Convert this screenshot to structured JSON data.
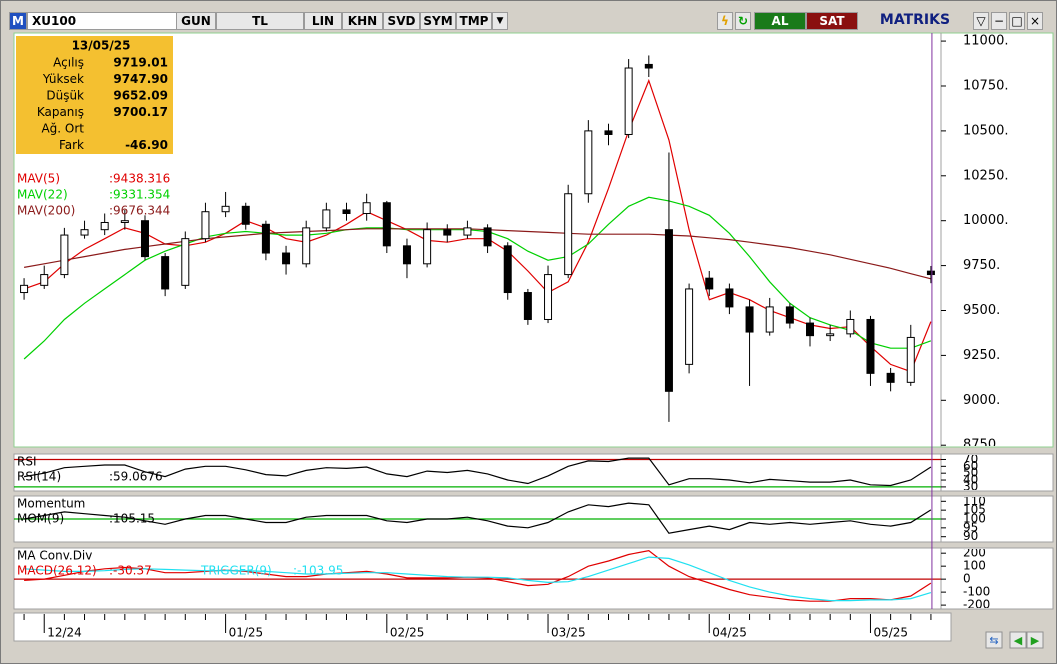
{
  "toolbar": {
    "logo": "M",
    "symbol": "XU100",
    "buttons": [
      "GUN",
      "TL",
      "LIN",
      "KHN",
      "SVD",
      "SYM",
      "TMP"
    ],
    "buy": "AL",
    "sell": "SAT",
    "brand": "MATRIKS"
  },
  "info": {
    "date": "13/05/25",
    "rows": [
      {
        "label": "Açılış",
        "value": "9719.01"
      },
      {
        "label": "Yüksek",
        "value": "9747.90"
      },
      {
        "label": "Düşük",
        "value": "9652.09"
      },
      {
        "label": "Kapanış",
        "value": "9700.17"
      },
      {
        "label": "Ağ. Ort"
      },
      {
        "label": "Fark",
        "value": "-46.90"
      }
    ]
  },
  "chart_data": [
    {
      "type": "candlestick",
      "categories": [
        null,
        "12/24",
        null,
        null,
        null,
        null,
        null,
        null,
        null,
        null,
        "01/25",
        null,
        null,
        null,
        null,
        null,
        null,
        null,
        "02/25",
        null,
        null,
        null,
        null,
        null,
        null,
        null,
        "03/25",
        null,
        null,
        null,
        null,
        null,
        null,
        null,
        "04/25",
        null,
        null,
        null,
        null,
        null,
        null,
        null,
        "05/25",
        null,
        null,
        null
      ],
      "open": [
        9600,
        9640,
        9700,
        9920,
        9950,
        9990,
        10000,
        9800,
        9640,
        9900,
        10050,
        10080,
        9980,
        9820,
        9760,
        9960,
        10060,
        10040,
        10100,
        9860,
        9760,
        9950,
        9920,
        9960,
        9860,
        9600,
        9450,
        9700,
        10150,
        10500,
        10480,
        10870,
        9950,
        9200,
        9680,
        9620,
        9520,
        9380,
        9520,
        9430,
        9360,
        9370,
        9450,
        9150,
        9100,
        9719.01
      ],
      "high": [
        9680,
        9750,
        9960,
        10000,
        10040,
        10060,
        10030,
        9820,
        9940,
        10100,
        10160,
        10100,
        10000,
        9860,
        10000,
        10100,
        10100,
        10150,
        10110,
        9900,
        9990,
        9980,
        10000,
        9980,
        9880,
        9620,
        9750,
        10200,
        10560,
        10540,
        10900,
        10920,
        10380,
        9650,
        9720,
        9650,
        9560,
        9570,
        9540,
        9460,
        9420,
        9500,
        9470,
        9180,
        9420,
        9747.9
      ],
      "low": [
        9560,
        9620,
        9680,
        9900,
        9920,
        9950,
        9780,
        9580,
        9620,
        9880,
        10020,
        9950,
        9780,
        9700,
        9740,
        9940,
        10000,
        10000,
        9820,
        9680,
        9740,
        9880,
        9900,
        9820,
        9560,
        9420,
        9430,
        9680,
        10100,
        10420,
        10460,
        10800,
        8880,
        9150,
        9580,
        9480,
        9080,
        9360,
        9400,
        9300,
        9330,
        9350,
        9080,
        9050,
        9080,
        9652.09
      ],
      "close": [
        9640,
        9700,
        9920,
        9950,
        9990,
        10000,
        9800,
        9620,
        9900,
        10050,
        10080,
        9980,
        9820,
        9760,
        9960,
        10060,
        10040,
        10100,
        9860,
        9760,
        9950,
        9920,
        9960,
        9860,
        9600,
        9450,
        9700,
        10150,
        10500,
        10480,
        10850,
        10850,
        9050,
        9620,
        9620,
        9520,
        9380,
        9520,
        9430,
        9360,
        9370,
        9450,
        9150,
        9100,
        9350,
        9700.17
      ],
      "up_color": "#ffffff",
      "down_color": "#000000",
      "series": [
        {
          "name": "MAV(5)",
          "color": "#e00000",
          "legend_value": ":9438.316",
          "values": [
            9620,
            9660,
            9760,
            9840,
            9900,
            9960,
            9930,
            9870,
            9860,
            9880,
            9930,
            10000,
            9960,
            9900,
            9880,
            9920,
            9980,
            10050,
            10000,
            9950,
            9890,
            9880,
            9900,
            9900,
            9830,
            9720,
            9600,
            9660,
            9880,
            10180,
            10500,
            10780,
            10450,
            9950,
            9560,
            9600,
            9560,
            9500,
            9460,
            9420,
            9400,
            9410,
            9300,
            9200,
            9160,
            9438.316
          ]
        },
        {
          "name": "MAV(22)",
          "color": "#00d000",
          "legend_value": ":9331.354",
          "values": [
            9230,
            9330,
            9450,
            9540,
            9620,
            9700,
            9780,
            9830,
            9870,
            9910,
            9930,
            9940,
            9930,
            9920,
            9920,
            9930,
            9950,
            9960,
            9960,
            9950,
            9950,
            9950,
            9950,
            9940,
            9900,
            9830,
            9780,
            9800,
            9870,
            9980,
            10080,
            10130,
            10110,
            10080,
            10030,
            9930,
            9800,
            9660,
            9540,
            9460,
            9420,
            9390,
            9320,
            9290,
            9290,
            9331.354
          ]
        },
        {
          "name": "MAV(200)",
          "color": "#8b1a1a",
          "legend_value": ":9676.344",
          "values": [
            9740,
            9760,
            9780,
            9800,
            9820,
            9840,
            9855,
            9870,
            9885,
            9900,
            9910,
            9920,
            9930,
            9935,
            9940,
            9945,
            9950,
            9955,
            9955,
            9955,
            9955,
            9955,
            9955,
            9950,
            9945,
            9940,
            9935,
            9930,
            9925,
            9925,
            9925,
            9925,
            9920,
            9915,
            9905,
            9895,
            9880,
            9865,
            9850,
            9830,
            9810,
            9785,
            9760,
            9735,
            9705,
            9676.344
          ]
        }
      ],
      "ylim": [
        8740,
        11045
      ],
      "yticks": [
        {
          "value": 11000,
          "label": "11000."
        },
        {
          "value": 10750,
          "label": "10750."
        },
        {
          "value": 10500,
          "label": "10500."
        },
        {
          "value": 10250,
          "label": "10250."
        },
        {
          "value": 10000,
          "label": "10000."
        },
        {
          "value": 9750,
          "label": "9750."
        },
        {
          "value": 9500,
          "label": "9500."
        },
        {
          "value": 9250,
          "label": "9250."
        },
        {
          "value": 9000,
          "label": "9000."
        },
        {
          "value": 8750,
          "label": "8750."
        }
      ]
    },
    {
      "type": "line",
      "title": "RSI",
      "ylim": [
        24,
        78
      ],
      "yticks": [
        70,
        60,
        50,
        40,
        30
      ],
      "reference_lines": [
        {
          "value": 70,
          "color": "#c00000"
        },
        {
          "value": 30,
          "color": "#00b000"
        }
      ],
      "series": [
        {
          "name": "RSI(14)",
          "color": "#000000",
          "legend_value": ":59.0676",
          "values": [
            45,
            50,
            58,
            60,
            62,
            62,
            52,
            45,
            56,
            60,
            60,
            55,
            48,
            46,
            54,
            58,
            57,
            59,
            49,
            45,
            53,
            51,
            54,
            49,
            40,
            35,
            46,
            60,
            68,
            67,
            72,
            72,
            33,
            42,
            42,
            40,
            36,
            41,
            39,
            37,
            37,
            40,
            33,
            32,
            40,
            59.0676
          ]
        }
      ]
    },
    {
      "type": "line",
      "title": "Momentum",
      "ylim": [
        87,
        113
      ],
      "yticks": [
        110,
        105,
        100,
        95,
        90
      ],
      "reference_lines": [
        {
          "value": 100,
          "color": "#00b000"
        }
      ],
      "series": [
        {
          "name": "MOM(9)",
          "color": "#000000",
          "legend_value": ":105.15",
          "values": [
            100,
            102,
            104,
            103,
            102,
            101,
            99,
            97,
            100,
            102,
            102,
            100,
            98,
            98,
            101,
            102,
            102,
            102,
            99,
            98,
            100,
            100,
            101,
            99,
            96,
            95,
            98,
            104,
            108,
            107,
            109,
            108,
            92,
            94,
            96,
            94,
            98,
            97,
            98,
            97,
            98,
            99,
            97,
            96,
            98,
            105.15
          ]
        }
      ]
    },
    {
      "type": "line",
      "title": "MA Conv.Div",
      "ylim": [
        -230,
        240
      ],
      "yticks": [
        200,
        100,
        0,
        -100,
        -200
      ],
      "reference_lines": [
        {
          "value": 0,
          "color": "#c00000"
        }
      ],
      "series": [
        {
          "name": "MACD(26.12)",
          "color": "#e00000",
          "legend_value": ":-30.37",
          "values": [
            -10,
            0,
            30,
            60,
            80,
            90,
            80,
            50,
            50,
            60,
            70,
            60,
            40,
            20,
            20,
            40,
            50,
            60,
            40,
            10,
            10,
            10,
            15,
            10,
            -20,
            -50,
            -40,
            20,
            100,
            140,
            190,
            220,
            100,
            20,
            -30,
            -80,
            -120,
            -140,
            -160,
            -170,
            -170,
            -150,
            -150,
            -160,
            -130,
            -30.37
          ]
        },
        {
          "name": "TRIGGER(9)",
          "color": "#20e0f0",
          "legend_value": ":-103.95",
          "values": [
            80,
            70,
            60,
            60,
            65,
            75,
            80,
            75,
            70,
            65,
            65,
            65,
            60,
            50,
            40,
            40,
            45,
            50,
            50,
            40,
            30,
            20,
            15,
            15,
            10,
            -10,
            -25,
            -20,
            20,
            70,
            120,
            170,
            160,
            110,
            50,
            -10,
            -60,
            -100,
            -130,
            -150,
            -165,
            -165,
            -160,
            -160,
            -150,
            -103.95
          ]
        }
      ]
    }
  ]
}
